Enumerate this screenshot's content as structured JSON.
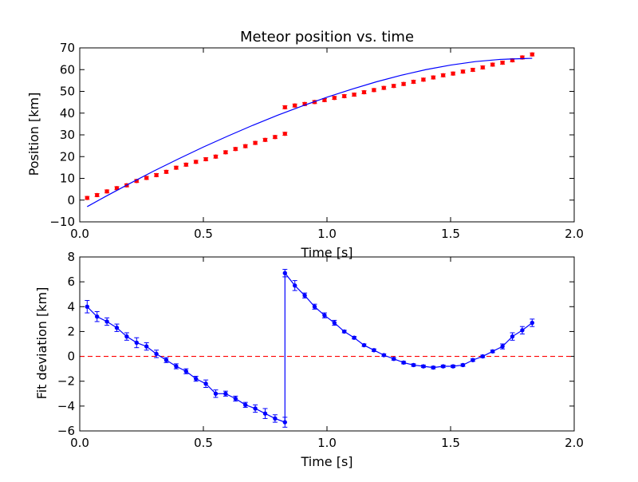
{
  "chart_data": [
    {
      "type": "scatter",
      "title": "Meteor position vs. time",
      "xlabel": "Time [s]",
      "ylabel": "Position [km]",
      "xlim": [
        0.0,
        2.0
      ],
      "ylim": [
        -10,
        70
      ],
      "xticks": [
        "0.0",
        "0.5",
        "1.0",
        "1.5",
        "2.0"
      ],
      "yticks": [
        "−10",
        "0",
        "10",
        "20",
        "30",
        "40",
        "50",
        "60",
        "70"
      ],
      "xtick_values": [
        0.0,
        0.5,
        1.0,
        1.5,
        2.0
      ],
      "ytick_values": [
        -10,
        0,
        10,
        20,
        30,
        40,
        50,
        60,
        70
      ],
      "grid": false,
      "series": [
        {
          "kind": "points-with-errorbars",
          "color": "#ff0000",
          "x": [
            0.03,
            0.07,
            0.11,
            0.15,
            0.19,
            0.23,
            0.27,
            0.31,
            0.35,
            0.39,
            0.43,
            0.47,
            0.51,
            0.55,
            0.59,
            0.63,
            0.67,
            0.71,
            0.75,
            0.79,
            0.83,
            0.83,
            0.87,
            0.91,
            0.95,
            0.99,
            1.03,
            1.07,
            1.11,
            1.15,
            1.19,
            1.23,
            1.27,
            1.31,
            1.35,
            1.39,
            1.43,
            1.47,
            1.51,
            1.55,
            1.59,
            1.63,
            1.67,
            1.71,
            1.75,
            1.79,
            1.83
          ],
          "y": [
            1.0,
            2.3,
            4.0,
            5.5,
            6.8,
            8.8,
            10.2,
            11.5,
            13.0,
            14.9,
            16.3,
            17.6,
            18.8,
            20.0,
            22.0,
            23.5,
            24.8,
            26.3,
            27.7,
            29.0,
            30.5,
            42.7,
            43.5,
            44.2,
            45.1,
            46.0,
            47.0,
            47.8,
            48.5,
            49.6,
            50.6,
            51.6,
            52.5,
            53.4,
            54.4,
            55.4,
            56.4,
            57.4,
            58.2,
            59.1,
            59.9,
            61.0,
            62.3,
            63.2,
            64.3,
            65.6,
            67.0
          ],
          "err": [
            0.7,
            0.7,
            0.7,
            0.7,
            0.7,
            0.7,
            0.7,
            0.7,
            0.7,
            0.7,
            0.7,
            0.7,
            0.7,
            0.7,
            0.7,
            0.7,
            0.7,
            0.7,
            0.7,
            0.7,
            0.7,
            0.7,
            0.7,
            0.7,
            0.7,
            0.7,
            0.7,
            0.7,
            0.7,
            0.7,
            0.7,
            0.7,
            0.7,
            0.7,
            0.7,
            0.7,
            0.7,
            0.7,
            0.7,
            0.7,
            0.7,
            0.7,
            0.7,
            0.7,
            0.7,
            0.7,
            0.7
          ]
        },
        {
          "kind": "line",
          "color": "#0000ff",
          "x": [
            0.03,
            0.1,
            0.2,
            0.3,
            0.4,
            0.5,
            0.6,
            0.7,
            0.8,
            0.9,
            1.0,
            1.1,
            1.2,
            1.3,
            1.4,
            1.5,
            1.6,
            1.7,
            1.8,
            1.83
          ],
          "y": [
            -3.0,
            1.4,
            7.5,
            13.4,
            19.0,
            24.4,
            29.5,
            34.4,
            39.0,
            43.3,
            47.3,
            51.0,
            54.4,
            57.4,
            60.0,
            62.1,
            63.7,
            64.7,
            65.1,
            65.2
          ]
        }
      ]
    },
    {
      "type": "line",
      "title": "",
      "xlabel": "Time [s]",
      "ylabel": "Fit deviation [km]",
      "xlim": [
        0.0,
        2.0
      ],
      "ylim": [
        -6,
        8
      ],
      "xticks": [
        "0.0",
        "0.5",
        "1.0",
        "1.5",
        "2.0"
      ],
      "yticks": [
        "−6",
        "−4",
        "−2",
        "0",
        "2",
        "4",
        "6",
        "8"
      ],
      "xtick_values": [
        0.0,
        0.5,
        1.0,
        1.5,
        2.0
      ],
      "ytick_values": [
        -6,
        -4,
        -2,
        0,
        2,
        4,
        6,
        8
      ],
      "grid": false,
      "reference_line": {
        "y": 0,
        "color": "#ff0000",
        "style": "dashed"
      },
      "series": [
        {
          "kind": "line-with-errorbars",
          "color": "#0000ff",
          "x": [
            0.03,
            0.07,
            0.11,
            0.15,
            0.19,
            0.23,
            0.27,
            0.31,
            0.35,
            0.39,
            0.43,
            0.47,
            0.51,
            0.55,
            0.59,
            0.63,
            0.67,
            0.71,
            0.75,
            0.79,
            0.83,
            0.83,
            0.87,
            0.91,
            0.95,
            0.99,
            1.03,
            1.07,
            1.11,
            1.15,
            1.19,
            1.23,
            1.27,
            1.31,
            1.35,
            1.39,
            1.43,
            1.47,
            1.51,
            1.55,
            1.59,
            1.63,
            1.67,
            1.71,
            1.75,
            1.79,
            1.83
          ],
          "y": [
            4.0,
            3.2,
            2.8,
            2.3,
            1.6,
            1.1,
            0.8,
            0.2,
            -0.3,
            -0.8,
            -1.2,
            -1.8,
            -2.2,
            -3.0,
            -3.0,
            -3.4,
            -3.9,
            -4.2,
            -4.6,
            -5.0,
            -5.3,
            6.7,
            5.7,
            4.9,
            4.0,
            3.3,
            2.7,
            2.0,
            1.5,
            0.9,
            0.5,
            0.1,
            -0.2,
            -0.5,
            -0.7,
            -0.8,
            -0.9,
            -0.8,
            -0.8,
            -0.7,
            -0.3,
            0.0,
            0.4,
            0.8,
            1.6,
            2.1,
            2.7
          ],
          "err": [
            0.5,
            0.4,
            0.3,
            0.3,
            0.3,
            0.4,
            0.3,
            0.3,
            0.2,
            0.2,
            0.2,
            0.2,
            0.3,
            0.3,
            0.2,
            0.2,
            0.2,
            0.3,
            0.4,
            0.3,
            0.4,
            0.3,
            0.4,
            0.2,
            0.2,
            0.2,
            0.2,
            0.1,
            0.1,
            0.1,
            0.1,
            0.1,
            0.1,
            0.1,
            0.1,
            0.1,
            0.1,
            0.1,
            0.1,
            0.1,
            0.1,
            0.1,
            0.1,
            0.2,
            0.3,
            0.3,
            0.3
          ]
        }
      ]
    }
  ]
}
